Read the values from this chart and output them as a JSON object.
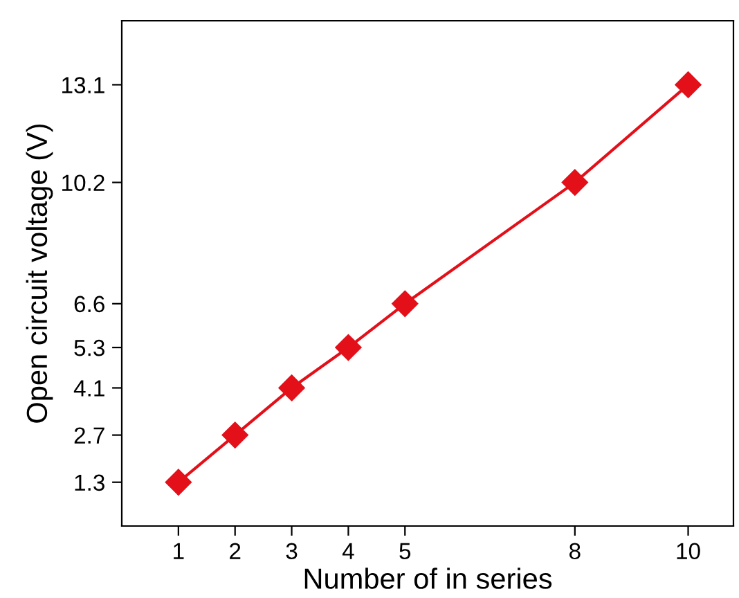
{
  "chart_data": {
    "type": "line",
    "xlabel": "Number of in series",
    "ylabel": "Open circuit voltage (V)",
    "x": [
      1,
      2,
      3,
      4,
      5,
      8,
      10
    ],
    "series": [
      {
        "color": "#e3101a",
        "values": [
          1.3,
          2.7,
          4.1,
          5.3,
          6.6,
          10.2,
          13.1
        ]
      }
    ],
    "xlim": [
      0,
      10.8
    ],
    "ylim": [
      0,
      15
    ],
    "xticks": [
      1,
      2,
      3,
      4,
      5,
      8,
      10
    ],
    "yticks": [
      1.3,
      2.7,
      4.1,
      5.3,
      6.6,
      10.2,
      13.1
    ],
    "marker": "diamond",
    "line_style": "solid",
    "grid": false,
    "legend": false
  }
}
